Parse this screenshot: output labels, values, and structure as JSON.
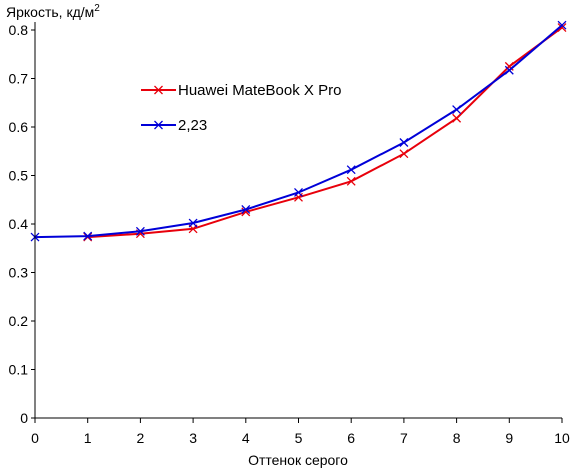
{
  "chart_data": {
    "type": "line",
    "title": "",
    "ylabel": "Яркость, кд/м",
    "ylabel_sup": "2",
    "xlabel": "Оттенок серого",
    "xlim": [
      0,
      10
    ],
    "ylim": [
      0,
      0.8
    ],
    "x_ticks": [
      "0",
      "1",
      "2",
      "3",
      "4",
      "5",
      "6",
      "7",
      "8",
      "9",
      "10"
    ],
    "y_ticks": [
      "0",
      "0.1",
      "0.2",
      "0.3",
      "0.4",
      "0.5",
      "0.6",
      "0.7",
      "0.8"
    ],
    "grid": false,
    "legend_position": "upper-left inside",
    "series": [
      {
        "name": "Huawei MateBook X Pro",
        "color": "#e8000b",
        "marker": "x",
        "x": [
          1,
          2,
          3,
          4,
          5,
          6,
          7,
          8,
          9,
          10
        ],
        "y": [
          0.373,
          0.38,
          0.39,
          0.425,
          0.455,
          0.488,
          0.545,
          0.618,
          0.725,
          0.805
        ]
      },
      {
        "name": "2,23",
        "color": "#0000d8",
        "marker": "x",
        "x": [
          0,
          1,
          2,
          3,
          4,
          5,
          6,
          7,
          8,
          9,
          10
        ],
        "y": [
          0.373,
          0.375,
          0.385,
          0.402,
          0.43,
          0.465,
          0.512,
          0.568,
          0.636,
          0.717,
          0.81
        ]
      }
    ]
  }
}
